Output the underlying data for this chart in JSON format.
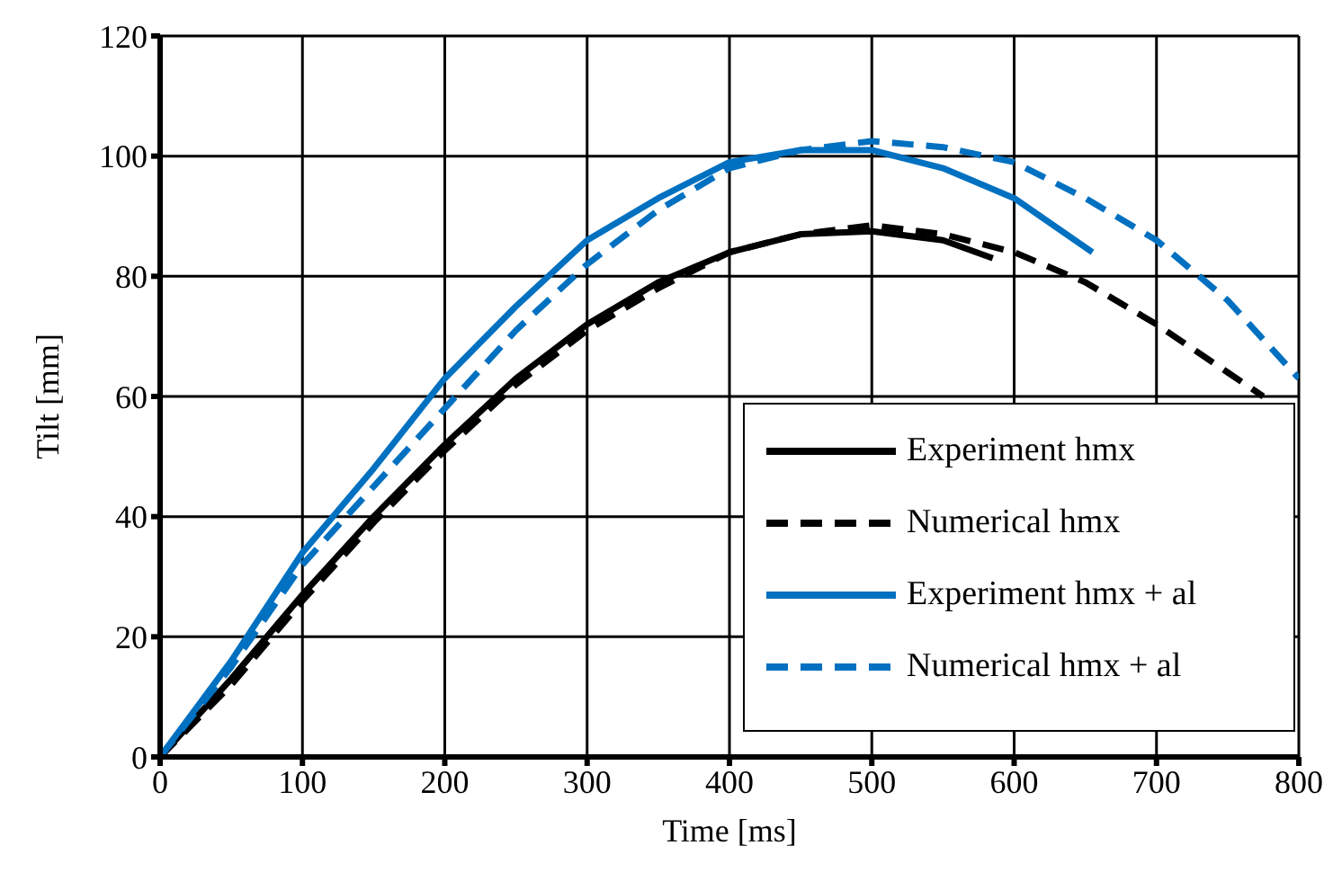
{
  "chart_data": {
    "type": "line",
    "xlabel": "Time [ms]",
    "ylabel": "Tilt [mm]",
    "xlim": [
      0,
      800
    ],
    "xticks": [
      0,
      100,
      200,
      300,
      400,
      500,
      600,
      700,
      800
    ],
    "ylim": [
      0,
      120
    ],
    "yticks": [
      0,
      20,
      40,
      60,
      80,
      100,
      120
    ],
    "grid": true,
    "legend": "bottom right",
    "marker": "none",
    "series": [
      {
        "name": "Experiment hmx",
        "color": "#000000",
        "line_style": "solid",
        "x": [
          0,
          50,
          100,
          150,
          200,
          250,
          300,
          350,
          400,
          450,
          500,
          550,
          585
        ],
        "values": [
          0,
          13,
          27,
          40,
          52,
          63,
          72,
          79,
          84,
          87,
          87.5,
          86,
          83
        ]
      },
      {
        "name": "Numerical hmx",
        "color": "#000000",
        "line_style": "dashed",
        "x": [
          0,
          50,
          100,
          150,
          200,
          250,
          300,
          350,
          400,
          450,
          500,
          550,
          600,
          650,
          700,
          750,
          775
        ],
        "values": [
          0,
          12,
          26,
          39,
          51,
          62,
          71,
          78,
          84,
          87,
          88.5,
          87,
          84,
          79,
          72,
          64,
          60
        ]
      },
      {
        "name": "Experiment hmx + al",
        "color": "#0070c0",
        "line_style": "solid",
        "x": [
          0,
          25,
          50,
          100,
          150,
          200,
          250,
          300,
          350,
          400,
          450,
          500,
          550,
          600,
          655
        ],
        "values": [
          0,
          8,
          16,
          34,
          48,
          63,
          75,
          86,
          93,
          99,
          101,
          101,
          98,
          93,
          84
        ]
      },
      {
        "name": "Numerical hmx + al",
        "color": "#0070c0",
        "line_style": "dashed",
        "x": [
          0,
          50,
          100,
          150,
          200,
          250,
          300,
          350,
          400,
          450,
          500,
          550,
          600,
          650,
          700,
          750,
          800
        ],
        "values": [
          0,
          15,
          32,
          45,
          58,
          71,
          82,
          91,
          98,
          101,
          102.5,
          101.5,
          99,
          93,
          86,
          76,
          63
        ]
      }
    ]
  }
}
